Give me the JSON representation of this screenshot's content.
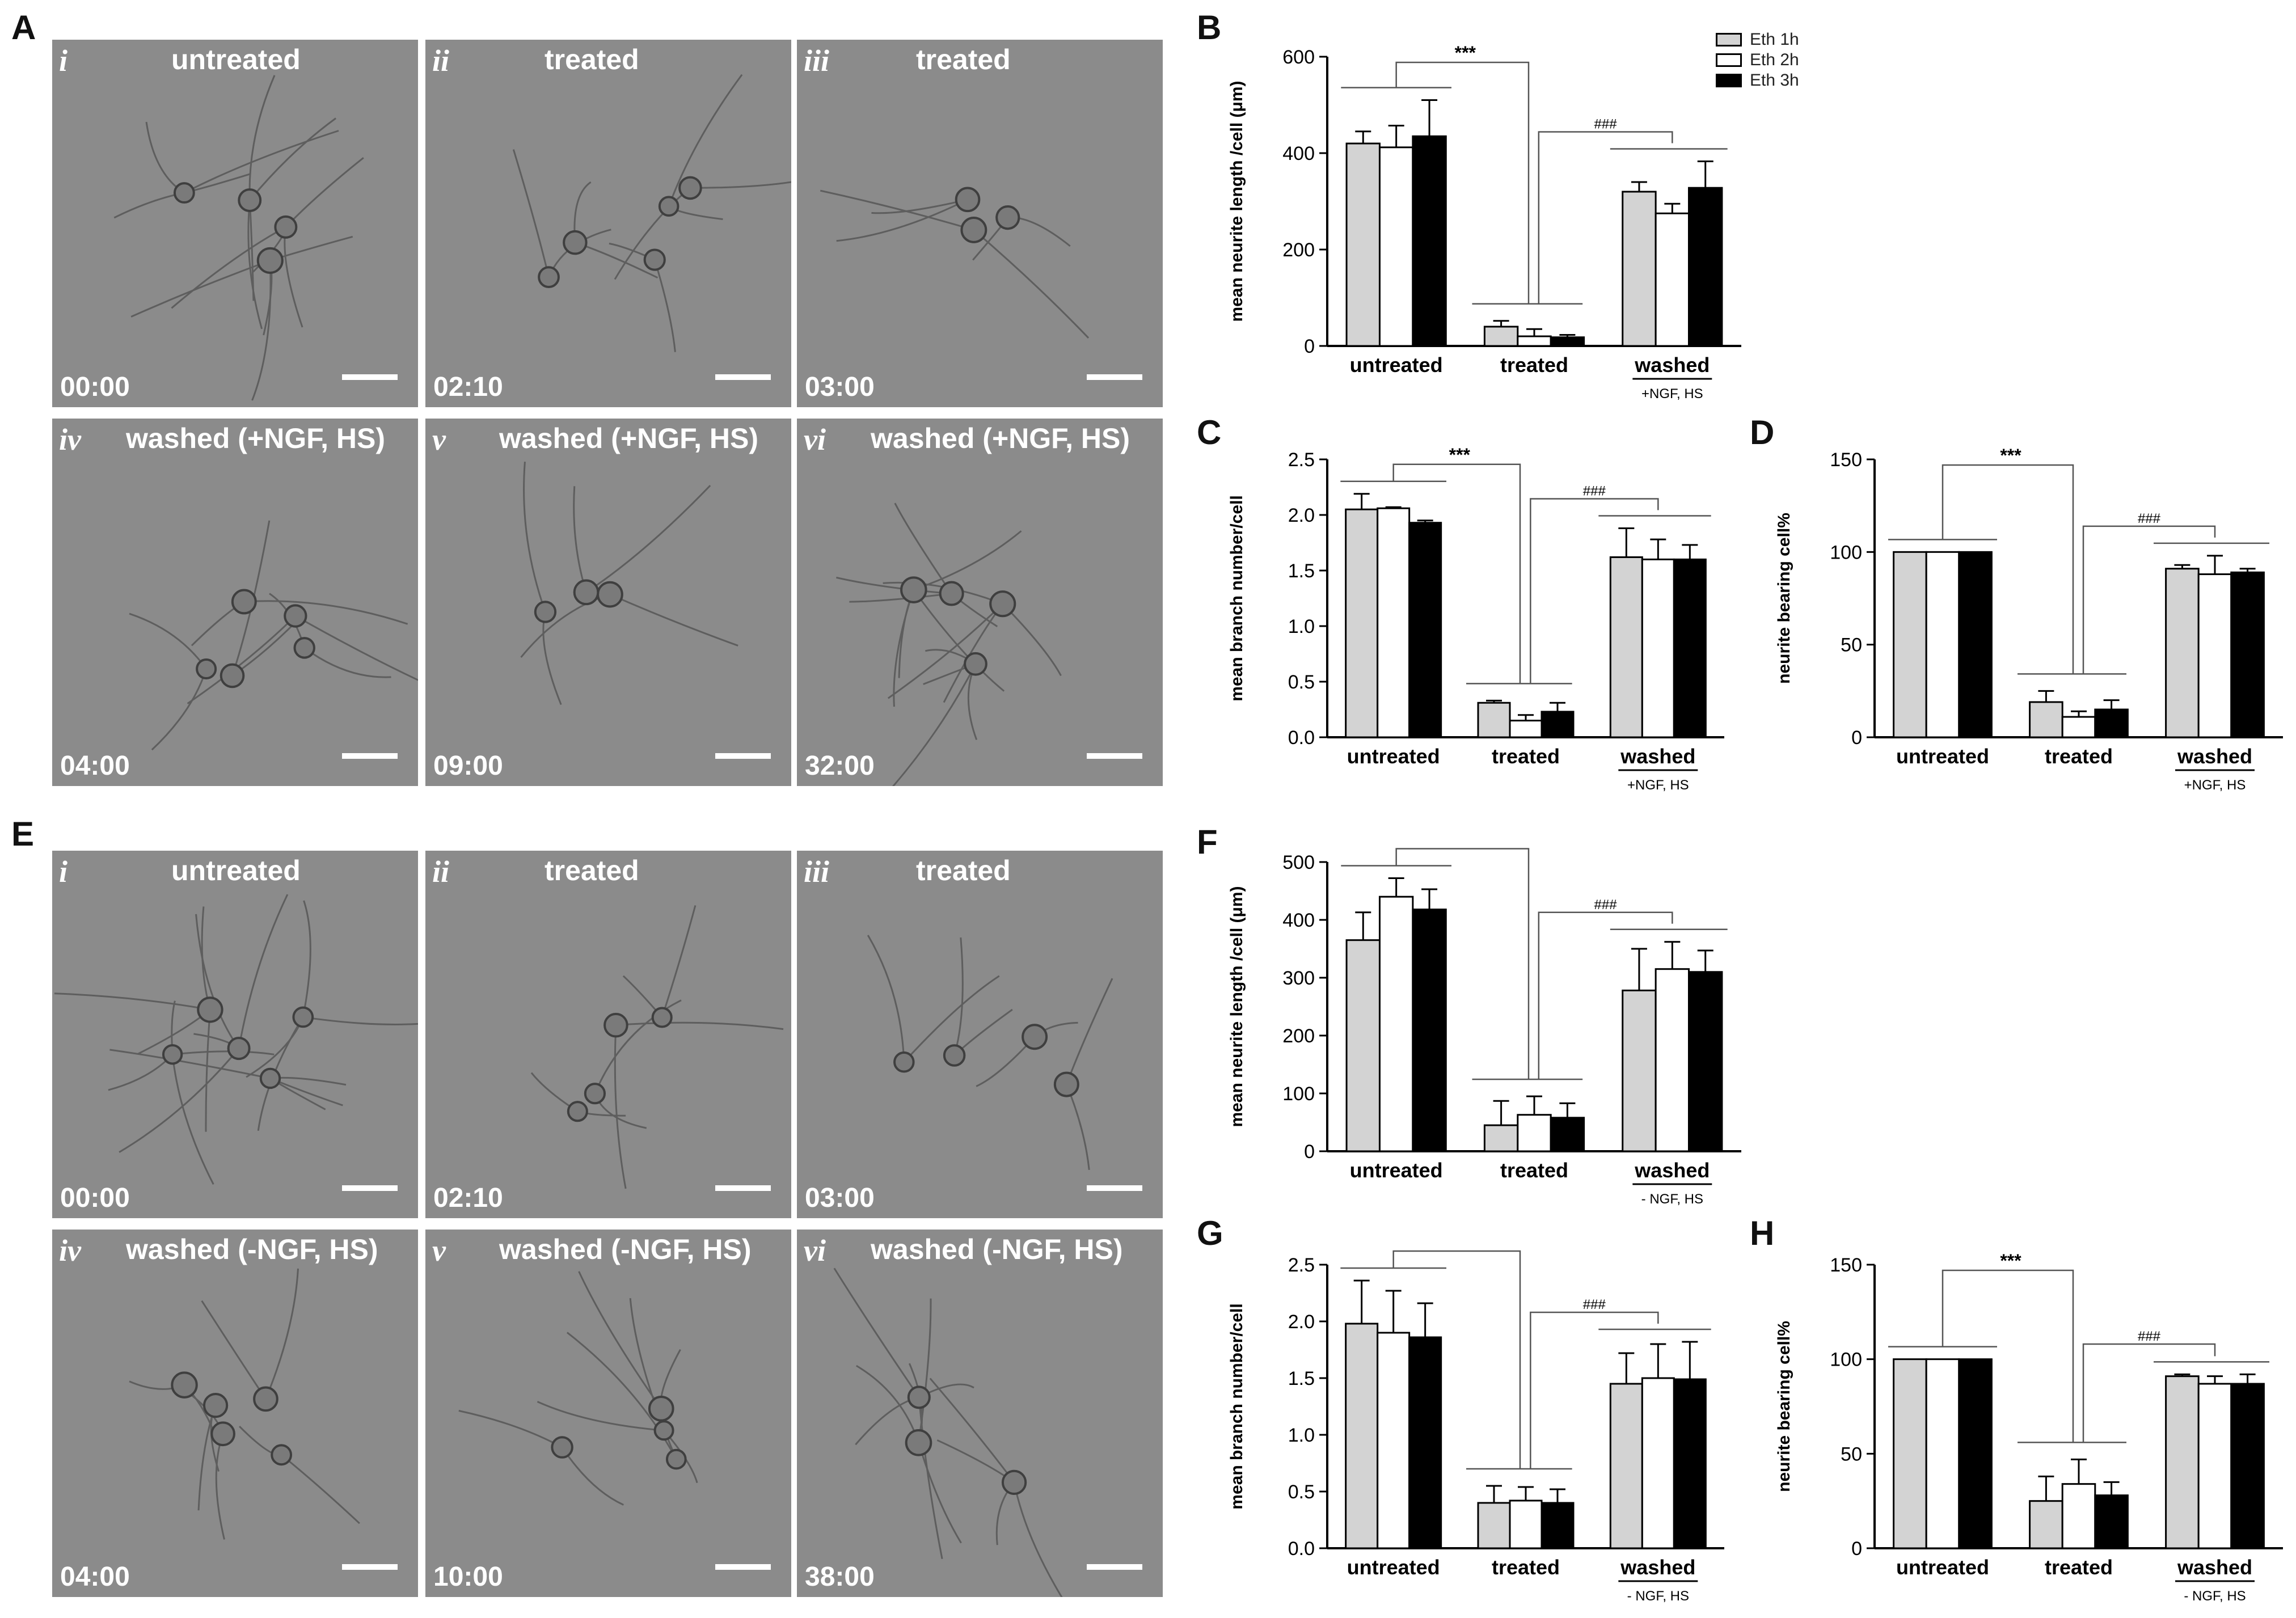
{
  "figure": {
    "panel_letters": [
      "A",
      "B",
      "C",
      "D",
      "E",
      "F",
      "G",
      "H"
    ],
    "legend": [
      {
        "label": "Eth 1h",
        "color": "#d3d3d3"
      },
      {
        "label": "Eth 2h",
        "color": "#ffffff"
      },
      {
        "label": "Eth 3h",
        "color": "#000000"
      }
    ]
  },
  "micrographs_A": [
    {
      "roman": "i",
      "condition": "untreated",
      "time": "00:00"
    },
    {
      "roman": "ii",
      "condition": "treated",
      "time": "02:10"
    },
    {
      "roman": "iii",
      "condition": "treated",
      "time": "03:00"
    },
    {
      "roman": "iv",
      "condition": "washed (+NGF, HS)",
      "time": "04:00"
    },
    {
      "roman": "v",
      "condition": "washed (+NGF, HS)",
      "time": "09:00"
    },
    {
      "roman": "vi",
      "condition": "washed (+NGF, HS)",
      "time": "32:00"
    }
  ],
  "micrographs_E": [
    {
      "roman": "i",
      "condition": "untreated",
      "time": "00:00"
    },
    {
      "roman": "ii",
      "condition": "treated",
      "time": "02:10"
    },
    {
      "roman": "iii",
      "condition": "treated",
      "time": "03:00"
    },
    {
      "roman": "iv",
      "condition": "washed (-NGF, HS)",
      "time": "04:00"
    },
    {
      "roman": "v",
      "condition": "washed (-NGF, HS)",
      "time": "10:00"
    },
    {
      "roman": "vi",
      "condition": "washed (-NGF, HS)",
      "time": "38:00"
    }
  ],
  "chart_data": [
    {
      "id": "B",
      "type": "bar",
      "categories": [
        "untreated",
        "treated",
        "washed"
      ],
      "washed_sub": "+NGF, HS",
      "ylabel": "mean neurite length /cell (μm)",
      "ylim": [
        0,
        600
      ],
      "yticks": [
        0,
        200,
        400,
        600
      ],
      "series": [
        {
          "name": "Eth 1h",
          "values": [
            420,
            40,
            320
          ],
          "errors": [
            25,
            12,
            20
          ]
        },
        {
          "name": "Eth 2h",
          "values": [
            412,
            20,
            275
          ],
          "errors": [
            45,
            15,
            20
          ]
        },
        {
          "name": "Eth 3h",
          "values": [
            435,
            18,
            328
          ],
          "errors": [
            75,
            5,
            55
          ]
        }
      ],
      "sig1": "***",
      "sig2": "###"
    },
    {
      "id": "C",
      "type": "bar",
      "categories": [
        "untreated",
        "treated",
        "washed"
      ],
      "washed_sub": "+NGF, HS",
      "ylabel": "mean branch number/cell",
      "ylim": [
        0,
        2.5
      ],
      "yticks": [
        0,
        0.5,
        1.0,
        1.5,
        2.0,
        2.5
      ],
      "series": [
        {
          "name": "Eth 1h",
          "values": [
            2.05,
            0.31,
            1.62
          ],
          "errors": [
            0.14,
            0.02,
            0.26
          ]
        },
        {
          "name": "Eth 2h",
          "values": [
            2.06,
            0.15,
            1.6
          ],
          "errors": [
            0.01,
            0.05,
            0.18
          ]
        },
        {
          "name": "Eth 3h",
          "values": [
            1.93,
            0.23,
            1.6
          ],
          "errors": [
            0.02,
            0.08,
            0.13
          ]
        }
      ],
      "sig1": "***",
      "sig2": "###"
    },
    {
      "id": "D",
      "type": "bar",
      "categories": [
        "untreated",
        "treated",
        "washed"
      ],
      "washed_sub": "+NGF, HS",
      "ylabel": "neurite bearing cell%",
      "ylim": [
        0,
        150
      ],
      "yticks": [
        0,
        50,
        100,
        150
      ],
      "series": [
        {
          "name": "Eth 1h",
          "values": [
            100,
            19,
            91
          ],
          "errors": [
            0,
            6,
            2
          ]
        },
        {
          "name": "Eth 2h",
          "values": [
            100,
            11,
            88
          ],
          "errors": [
            0,
            3,
            10
          ]
        },
        {
          "name": "Eth 3h",
          "values": [
            100,
            15,
            89
          ],
          "errors": [
            0,
            5,
            2
          ]
        }
      ],
      "sig1": "***",
      "sig2": "###"
    },
    {
      "id": "F",
      "type": "bar",
      "categories": [
        "untreated",
        "treated",
        "washed"
      ],
      "washed_sub": "- NGF, HS",
      "ylabel": "mean neurite length /cell (μm)",
      "ylim": [
        0,
        500
      ],
      "yticks": [
        0,
        100,
        200,
        300,
        400,
        500
      ],
      "series": [
        {
          "name": "Eth 1h",
          "values": [
            365,
            45,
            278
          ],
          "errors": [
            48,
            42,
            72
          ]
        },
        {
          "name": "Eth 2h",
          "values": [
            440,
            63,
            315
          ],
          "errors": [
            32,
            32,
            47
          ]
        },
        {
          "name": "Eth 3h",
          "values": [
            418,
            58,
            310
          ],
          "errors": [
            35,
            25,
            37
          ]
        }
      ],
      "sig1": "***",
      "sig2": "###"
    },
    {
      "id": "G",
      "type": "bar",
      "categories": [
        "untreated",
        "treated",
        "washed"
      ],
      "washed_sub": "- NGF, HS",
      "ylabel": "mean branch number/cell",
      "ylim": [
        0,
        2.5
      ],
      "yticks": [
        0,
        0.5,
        1.0,
        1.5,
        2.0,
        2.5
      ],
      "series": [
        {
          "name": "Eth 1h",
          "values": [
            1.98,
            0.4,
            1.45
          ],
          "errors": [
            0.38,
            0.15,
            0.27
          ]
        },
        {
          "name": "Eth 2h",
          "values": [
            1.9,
            0.42,
            1.5
          ],
          "errors": [
            0.37,
            0.12,
            0.3
          ]
        },
        {
          "name": "Eth 3h",
          "values": [
            1.86,
            0.4,
            1.49
          ],
          "errors": [
            0.3,
            0.12,
            0.33
          ]
        }
      ],
      "sig1": "***",
      "sig2": "###"
    },
    {
      "id": "H",
      "type": "bar",
      "categories": [
        "untreated",
        "treated",
        "washed"
      ],
      "washed_sub": "- NGF, HS",
      "ylabel": "neurite bearing cell%",
      "ylim": [
        0,
        150
      ],
      "yticks": [
        0,
        50,
        100,
        150
      ],
      "series": [
        {
          "name": "Eth 1h",
          "values": [
            100,
            25,
            91
          ],
          "errors": [
            0,
            13,
            1
          ]
        },
        {
          "name": "Eth 2h",
          "values": [
            100,
            34,
            87
          ],
          "errors": [
            0,
            13,
            4
          ]
        },
        {
          "name": "Eth 3h",
          "values": [
            100,
            28,
            87
          ],
          "errors": [
            0,
            7,
            5
          ]
        }
      ],
      "sig1": "***",
      "sig2": "###"
    }
  ]
}
